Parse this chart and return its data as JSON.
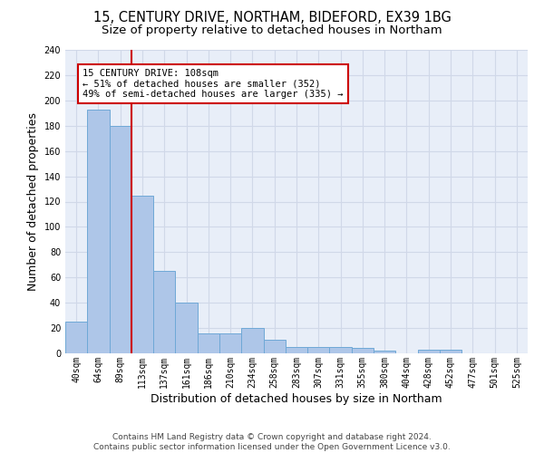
{
  "title_line1": "15, CENTURY DRIVE, NORTHAM, BIDEFORD, EX39 1BG",
  "title_line2": "Size of property relative to detached houses in Northam",
  "xlabel": "Distribution of detached houses by size in Northam",
  "ylabel": "Number of detached properties",
  "categories": [
    "40sqm",
    "64sqm",
    "89sqm",
    "113sqm",
    "137sqm",
    "161sqm",
    "186sqm",
    "210sqm",
    "234sqm",
    "258sqm",
    "283sqm",
    "307sqm",
    "331sqm",
    "355sqm",
    "380sqm",
    "404sqm",
    "428sqm",
    "452sqm",
    "477sqm",
    "501sqm",
    "525sqm"
  ],
  "values": [
    25,
    193,
    180,
    125,
    65,
    40,
    16,
    16,
    20,
    11,
    5,
    5,
    5,
    4,
    2,
    0,
    3,
    3,
    0,
    0,
    0
  ],
  "bar_color": "#aec6e8",
  "bar_edgecolor": "#6fa8d6",
  "vline_color": "#cc0000",
  "vline_x": 2.5,
  "annotation_text": "15 CENTURY DRIVE: 108sqm\n← 51% of detached houses are smaller (352)\n49% of semi-detached houses are larger (335) →",
  "annotation_box_color": "#ffffff",
  "annotation_box_edgecolor": "#cc0000",
  "ylim": [
    0,
    240
  ],
  "yticks": [
    0,
    20,
    40,
    60,
    80,
    100,
    120,
    140,
    160,
    180,
    200,
    220,
    240
  ],
  "grid_color": "#d0d8e8",
  "background_color": "#e8eef8",
  "footer_text": "Contains HM Land Registry data © Crown copyright and database right 2024.\nContains public sector information licensed under the Open Government Licence v3.0.",
  "title_fontsize": 10.5,
  "subtitle_fontsize": 9.5,
  "axis_label_fontsize": 9,
  "tick_fontsize": 7,
  "annotation_fontsize": 7.5,
  "footer_fontsize": 6.5
}
